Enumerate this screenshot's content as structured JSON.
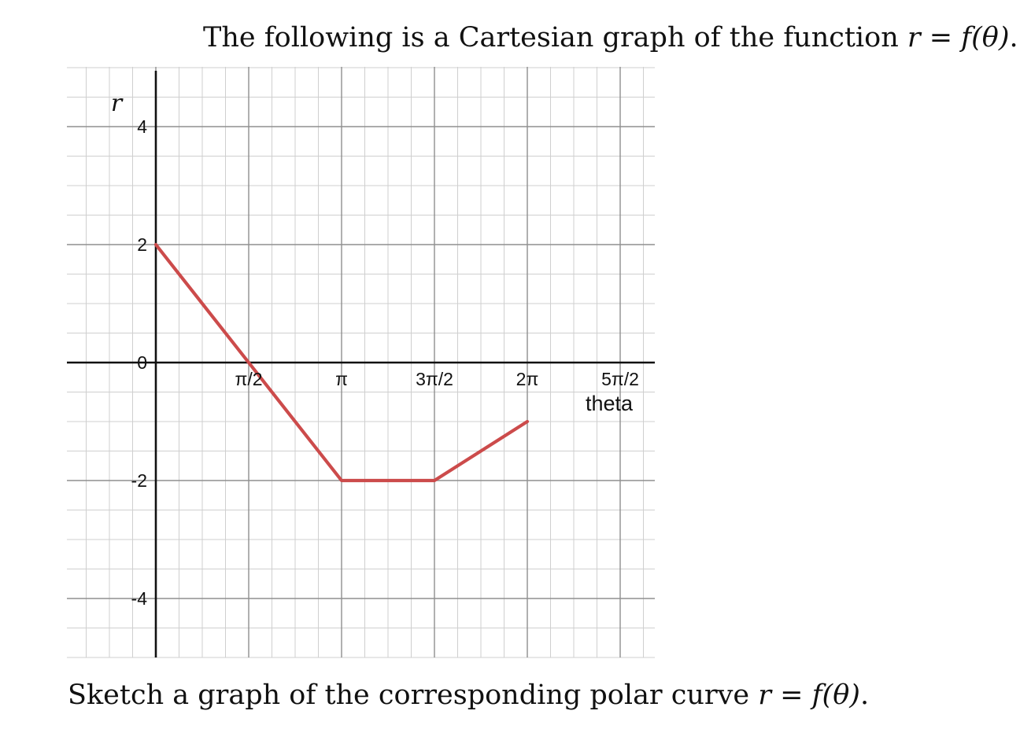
{
  "header": {
    "prefix": "The following is a Cartesian graph of the function ",
    "math": "r = f(θ)",
    "suffix": "."
  },
  "footer": {
    "prefix": "Sketch a graph of the corresponding polar curve ",
    "math": "r = f(θ)",
    "suffix": "."
  },
  "chart_data": {
    "type": "line",
    "xlabel": "theta",
    "ylabel": "r",
    "xlim": [
      -0.7854,
      4.2412
    ],
    "ylim": [
      -4.98,
      4.98
    ],
    "x_ticks": [
      {
        "value": 1.5708,
        "label": "π/2"
      },
      {
        "value": 3.1416,
        "label": "π"
      },
      {
        "value": 4.7124,
        "label": "3π/2"
      },
      {
        "value": 6.2832,
        "label": "2π"
      },
      {
        "value": 7.854,
        "label": "5π/2"
      }
    ],
    "y_ticks": [
      {
        "value": 4,
        "label": "4"
      },
      {
        "value": 2,
        "label": "2"
      },
      {
        "value": 0,
        "label": "0"
      },
      {
        "value": -2,
        "label": "-2"
      },
      {
        "value": -4,
        "label": "-4"
      }
    ],
    "grid": true,
    "color": "#cc4b4b",
    "series": [
      {
        "x": [
          0,
          1.5708,
          3.1416,
          4.7124,
          6.2832
        ],
        "y": [
          2,
          0,
          -2,
          -2,
          -1
        ]
      }
    ]
  }
}
